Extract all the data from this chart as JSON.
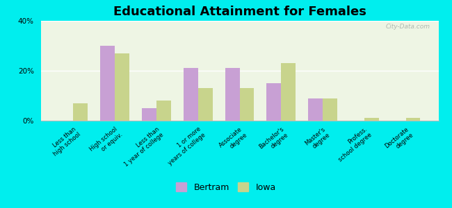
{
  "title": "Educational Attainment for Females",
  "categories": [
    "Less than\nhigh school",
    "High school\nor equiv.",
    "Less than\n1 year of college",
    "1 or more\nyears of college",
    "Associate\ndegree",
    "Bachelor's\ndegree",
    "Master's\ndegree",
    "Profess.\nschool degree",
    "Doctorate\ndegree"
  ],
  "bertram": [
    0,
    30,
    5,
    21,
    21,
    15,
    9,
    0,
    0
  ],
  "iowa": [
    7,
    27,
    8,
    13,
    13,
    23,
    9,
    1,
    1
  ],
  "bertram_color": "#c8a0d4",
  "iowa_color": "#c8d48c",
  "background_color": "#00eeee",
  "plot_bg": "#eef5e4",
  "ylim": [
    0,
    40
  ],
  "yticks": [
    0,
    20,
    40
  ],
  "ytick_labels": [
    "0%",
    "20%",
    "40%"
  ],
  "bar_width": 0.35,
  "title_fontsize": 13,
  "tick_fontsize": 6.0,
  "legend_fontsize": 9
}
